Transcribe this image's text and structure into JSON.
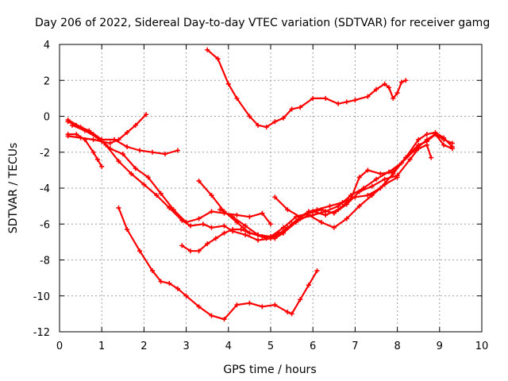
{
  "chart_data": {
    "type": "line",
    "title": "Day 206 of 2022, Sidereal Day-to-day VTEC variation (SDTVAR) for receiver gamg",
    "xlabel": "GPS time / hours",
    "ylabel": "SDTVAR / TECUs",
    "xlim": [
      0,
      10
    ],
    "ylim": [
      -12,
      4
    ],
    "xticks": [
      "0",
      "1",
      "2",
      "3",
      "4",
      "5",
      "6",
      "7",
      "8",
      "9",
      "10"
    ],
    "yticks": [
      "4",
      "2",
      "0",
      "-2",
      "-4",
      "-6",
      "-8",
      "-10",
      "-12"
    ],
    "grid": true,
    "color": "#ff0000",
    "marker": "plus",
    "series": [
      {
        "x": [
          3.5,
          3.75,
          4.0,
          4.2,
          4.5,
          4.7,
          4.9,
          5.1,
          5.3,
          5.5,
          5.7,
          6.0,
          6.3,
          6.6,
          6.8,
          7.0,
          7.3,
          7.5,
          7.7,
          7.8,
          7.9,
          8.0,
          8.1,
          8.2
        ],
        "y": [
          3.7,
          3.2,
          1.8,
          1.0,
          0.0,
          -0.5,
          -0.6,
          -0.3,
          -0.1,
          0.4,
          0.5,
          1.0,
          1.0,
          0.7,
          0.8,
          0.9,
          1.1,
          1.5,
          1.8,
          1.6,
          1.0,
          1.3,
          1.9,
          2.0
        ]
      },
      {
        "x": [
          1.4,
          1.6,
          1.9,
          2.2,
          2.4,
          2.6,
          2.8,
          3.0,
          3.3,
          3.6,
          3.9,
          4.2,
          4.5,
          4.8,
          5.1,
          5.4,
          5.5,
          5.7,
          5.9,
          6.1
        ],
        "y": [
          -5.1,
          -6.3,
          -7.5,
          -8.6,
          -9.2,
          -9.3,
          -9.6,
          -10.0,
          -10.6,
          -11.1,
          -11.3,
          -10.5,
          -10.4,
          -10.6,
          -10.5,
          -10.9,
          -11.0,
          -10.2,
          -9.4,
          -8.6
        ]
      },
      {
        "x": [
          0.2,
          0.4,
          0.7,
          1.0,
          1.3,
          1.6,
          1.9,
          2.2,
          2.5,
          2.8
        ],
        "y": [
          -0.3,
          -0.5,
          -0.8,
          -1.3,
          -1.3,
          -1.7,
          -1.9,
          -2.0,
          -2.1,
          -1.9
        ]
      },
      {
        "x": [
          0.2,
          0.5,
          0.8,
          1.0,
          1.2,
          1.4,
          1.6,
          1.8,
          2.05
        ],
        "y": [
          -1.1,
          -1.2,
          -1.3,
          -1.4,
          -1.5,
          -1.3,
          -0.9,
          -0.5,
          0.1
        ]
      },
      {
        "x": [
          0.2,
          0.4,
          0.6,
          0.8,
          0.9,
          1.0
        ],
        "y": [
          -1.0,
          -1.0,
          -1.3,
          -2.0,
          -2.4,
          -2.8
        ]
      },
      {
        "x": [
          0.2,
          0.5,
          0.8,
          1.1,
          1.4,
          1.7,
          2.0,
          2.3,
          2.6,
          2.9,
          3.1,
          3.4,
          3.6,
          3.9,
          4.1,
          4.4,
          4.7,
          5.0,
          5.2
        ],
        "y": [
          -0.2,
          -0.6,
          -1.0,
          -1.6,
          -2.5,
          -3.2,
          -3.8,
          -4.4,
          -5.1,
          -5.8,
          -6.1,
          -6.0,
          -6.2,
          -6.1,
          -6.4,
          -6.6,
          -6.9,
          -6.8,
          -6.5
        ]
      },
      {
        "x": [
          0.3,
          0.6,
          0.9,
          1.2,
          1.5,
          1.8,
          2.1,
          2.4,
          2.7,
          3.0,
          3.3,
          3.6,
          3.9,
          4.2,
          4.5,
          4.8,
          5.0
        ],
        "y": [
          -0.5,
          -0.8,
          -1.2,
          -1.8,
          -2.1,
          -2.9,
          -3.4,
          -4.3,
          -5.2,
          -5.9,
          -5.7,
          -5.3,
          -5.4,
          -5.5,
          -5.6,
          -5.4,
          -6.0
        ]
      },
      {
        "x": [
          2.9,
          3.1,
          3.3,
          3.5,
          3.7,
          3.9,
          4.1,
          4.3,
          4.5,
          4.7,
          4.9,
          5.1,
          5.3,
          5.5,
          5.7,
          5.9,
          6.1,
          6.4,
          6.7,
          7.0,
          7.3,
          7.6,
          7.9,
          8.2,
          8.5,
          8.7,
          8.9,
          9.1,
          9.3
        ],
        "y": [
          -7.2,
          -7.5,
          -7.5,
          -7.1,
          -6.8,
          -6.5,
          -6.3,
          -6.3,
          -6.5,
          -6.6,
          -6.8,
          -6.8,
          -6.5,
          -6.0,
          -5.6,
          -5.3,
          -5.2,
          -5.0,
          -4.8,
          -4.5,
          -4.4,
          -4.0,
          -3.2,
          -2.3,
          -1.6,
          -1.4,
          -1.0,
          -1.6,
          -1.8
        ]
      },
      {
        "x": [
          3.3,
          3.6,
          3.9,
          4.2,
          4.5,
          4.8,
          5.1,
          5.4,
          5.7,
          6.0,
          6.3,
          6.6,
          6.9,
          7.2,
          7.5,
          7.8,
          8.1,
          8.4,
          8.7,
          8.9,
          9.1,
          9.3
        ],
        "y": [
          -3.6,
          -4.4,
          -5.3,
          -5.9,
          -6.5,
          -6.7,
          -6.7,
          -6.2,
          -5.7,
          -5.5,
          -5.3,
          -5.0,
          -4.4,
          -4.0,
          -3.5,
          -3.1,
          -2.6,
          -1.9,
          -1.3,
          -1.0,
          -1.3,
          -1.5
        ]
      },
      {
        "x": [
          5.1,
          5.4,
          5.7,
          6.0,
          6.3,
          6.6,
          6.9,
          7.1,
          7.3,
          7.6,
          7.9,
          8.2,
          8.5,
          8.7,
          8.9,
          9.1,
          9.3
        ],
        "y": [
          -4.5,
          -5.2,
          -5.6,
          -5.3,
          -5.5,
          -5.2,
          -4.6,
          -3.4,
          -3.0,
          -3.2,
          -3.1,
          -2.3,
          -1.3,
          -1.0,
          -0.9,
          -1.2,
          -1.7
        ]
      },
      {
        "x": [
          5.0,
          5.3,
          5.6,
          5.9,
          6.2,
          6.5,
          6.8,
          7.1,
          7.4,
          7.7,
          8.0,
          8.3,
          8.5,
          8.7,
          8.8
        ],
        "y": [
          -6.7,
          -6.2,
          -5.6,
          -5.4,
          -5.2,
          -5.4,
          -4.9,
          -4.2,
          -3.9,
          -3.5,
          -3.3,
          -2.4,
          -1.8,
          -1.6,
          -2.3
        ]
      },
      {
        "x": [
          3.8,
          4.1,
          4.4,
          4.7,
          5.0,
          5.3,
          5.6,
          5.9,
          6.2,
          6.5,
          6.8,
          7.1,
          7.4,
          7.7,
          8.0
        ],
        "y": [
          -5.2,
          -5.6,
          -6.1,
          -6.6,
          -6.7,
          -6.5,
          -5.9,
          -5.5,
          -5.9,
          -6.2,
          -5.7,
          -5.0,
          -4.4,
          -3.8,
          -3.4
        ]
      }
    ]
  }
}
